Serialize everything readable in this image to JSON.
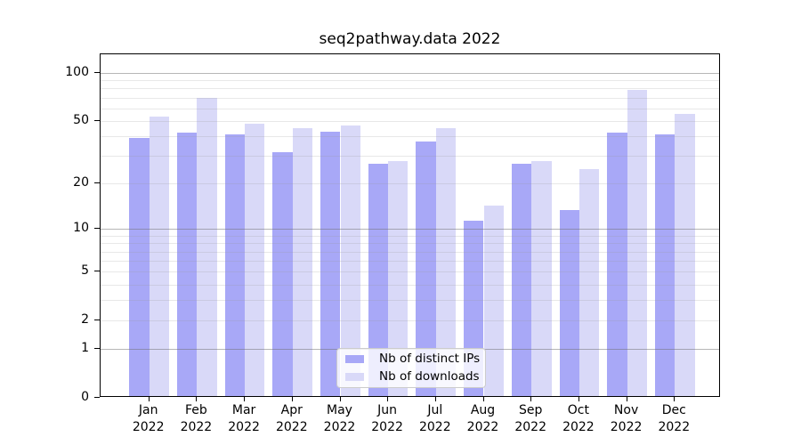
{
  "chart_data": {
    "type": "bar",
    "title": "seq2pathway.data 2022",
    "xlabel": "",
    "ylabel": "",
    "y_scale": "log1p",
    "ylim": [
      0,
      130
    ],
    "grid": "on",
    "y_ticks": [
      100,
      50,
      20,
      10,
      5,
      2,
      1,
      0
    ],
    "gridlines_major": [
      1,
      10,
      100
    ],
    "gridlines_minor": [
      2,
      3,
      4,
      5,
      6,
      7,
      8,
      9,
      20,
      30,
      40,
      50,
      60,
      70,
      80,
      90
    ],
    "categories": [
      "Jan",
      "Feb",
      "Mar",
      "Apr",
      "May",
      "Jun",
      "Jul",
      "Aug",
      "Sep",
      "Oct",
      "Nov",
      "Dec"
    ],
    "x_tick_year": "2022",
    "series": [
      {
        "name": "Nb of distinct IPs",
        "color": "#a8a8f7",
        "values": [
          38,
          41,
          40,
          31,
          42,
          26,
          36,
          11,
          26,
          13,
          41,
          40
        ]
      },
      {
        "name": "Nb of downloads",
        "color": "#d9d9f8",
        "values": [
          52,
          68,
          47,
          44,
          46,
          27,
          44,
          14,
          27,
          24,
          76,
          54
        ]
      }
    ],
    "legend": {
      "position": "lower center"
    }
  },
  "colors": {
    "background": "#ffffff",
    "axis": "#000000",
    "text": "#000000",
    "grid_major": "#bdbdbd",
    "grid_minor": "#e8e8e8",
    "legend_border": "#cccccc",
    "legend_background": "rgba(255,255,255,0.8)"
  }
}
